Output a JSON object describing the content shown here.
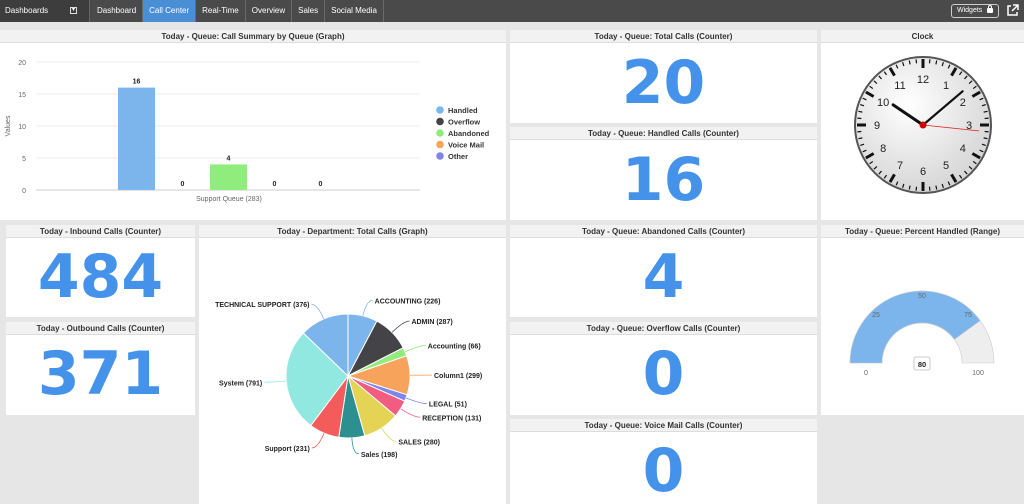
{
  "topbar": {
    "dashboards_label": "Dashboards",
    "tabs": [
      "Dashboard",
      "Call Center",
      "Real-Time",
      "Overview",
      "Sales",
      "Social Media"
    ],
    "active_tab": "Call Center",
    "widgets_label": "Widgets"
  },
  "panels": {
    "call_summary_title": "Today - Queue: Call Summary by Queue (Graph)",
    "total_calls_title": "Today - Queue: Total Calls (Counter)",
    "total_calls_value": "20",
    "handled_calls_title": "Today - Queue: Handled Calls (Counter)",
    "handled_calls_value": "16",
    "clock_title": "Clock",
    "inbound_title": "Today - Inbound Calls (Counter)",
    "inbound_value": "484",
    "outbound_title": "Today - Outbound Calls (Counter)",
    "outbound_value": "371",
    "department_title": "Today - Department: Total Calls (Graph)",
    "abandoned_title": "Today - Queue: Abandoned Calls (Counter)",
    "abandoned_value": "4",
    "overflow_title": "Today - Queue: Overflow Calls (Counter)",
    "overflow_value": "0",
    "voicemail_title": "Today - Queue: Voice Mail Calls (Counter)",
    "voicemail_value": "0",
    "percent_title": "Today - Queue: Percent Handled (Range)"
  },
  "colors": {
    "accent": "#4592ea",
    "active_tab": "#4a8fd6",
    "topbar": "#4a4a4a"
  },
  "icons": {
    "dropdown": "chevron-down-icon",
    "lock": "lock-icon",
    "external": "external-link-icon"
  },
  "chart_data": [
    {
      "type": "bar",
      "categories": [
        "Support Queue (283)"
      ],
      "ylabel": "Values",
      "ylim": [
        0,
        20
      ],
      "yticks": [
        0,
        5,
        10,
        15,
        20
      ],
      "legend_position": "right",
      "series": [
        {
          "name": "Handled",
          "values": [
            16
          ],
          "color": "#7cb5ec"
        },
        {
          "name": "Overflow",
          "values": [
            0
          ],
          "color": "#434348"
        },
        {
          "name": "Abandoned",
          "values": [
            4
          ],
          "color": "#90ed7d"
        },
        {
          "name": "Voice Mail",
          "values": [
            0
          ],
          "color": "#f7a35c"
        },
        {
          "name": "Other",
          "values": [
            0
          ],
          "color": "#8085e9"
        }
      ]
    },
    {
      "type": "pie",
      "slices": [
        {
          "label": "ACCOUNTING",
          "value": 226,
          "color": "#7cb5ec"
        },
        {
          "label": "ADMIN",
          "value": 287,
          "color": "#434348"
        },
        {
          "label": "Accounting",
          "value": 66,
          "color": "#90ed7d"
        },
        {
          "label": "Column1",
          "value": 299,
          "color": "#f7a35c"
        },
        {
          "label": "LEGAL",
          "value": 51,
          "color": "#8085e9"
        },
        {
          "label": "RECEPTION",
          "value": 131,
          "color": "#f15c80"
        },
        {
          "label": "SALES",
          "value": 280,
          "color": "#e4d354"
        },
        {
          "label": "Sales",
          "value": 198,
          "color": "#2b908f"
        },
        {
          "label": "Support",
          "value": 231,
          "color": "#f45b5b"
        },
        {
          "label": "System",
          "value": 791,
          "color": "#91e8e1"
        },
        {
          "label": "TECHNICAL SUPPORT",
          "value": 376,
          "color": "#7cb5ec"
        }
      ]
    },
    {
      "type": "gauge",
      "value": 80,
      "value_label": "80",
      "min": 0,
      "max": 100,
      "ticks": [
        0,
        25,
        50,
        75,
        100
      ]
    }
  ],
  "clock": {
    "time": "10:08:16",
    "numbers": [
      "12",
      "1",
      "2",
      "3",
      "4",
      "5",
      "6",
      "7",
      "8",
      "9",
      "10",
      "11"
    ]
  }
}
